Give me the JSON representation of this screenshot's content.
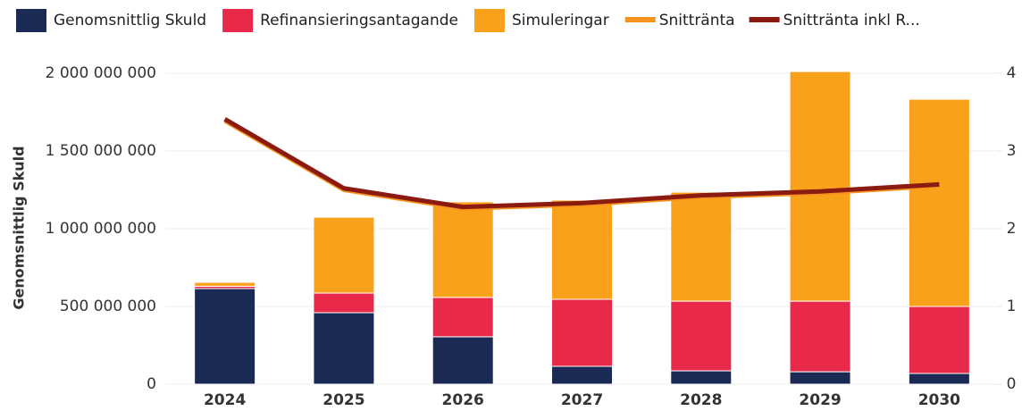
{
  "chart_data": {
    "type": "bar",
    "stacked": true,
    "y_label": "Genomsnittlig Skuld",
    "categories": [
      "2024",
      "2025",
      "2026",
      "2027",
      "2028",
      "2029",
      "2030"
    ],
    "series": [
      {
        "name": "Genomsnittlig Skuld",
        "color": "#1b2a55",
        "values": [
          615000000,
          460000000,
          305000000,
          115000000,
          86000000,
          80000000,
          69000000
        ]
      },
      {
        "name": "Refinansieringsantagande",
        "color": "#e8294a",
        "values": [
          15000000,
          126000000,
          253000000,
          431000000,
          448000000,
          454000000,
          431000000
        ]
      },
      {
        "name": "Simuleringar",
        "color": "#f9a11b",
        "values": [
          25000000,
          488000000,
          615000000,
          638000000,
          701000000,
          1477000000,
          1333000000
        ]
      },
      {
        "name": "Snittränta",
        "type": "line",
        "axis": "y2",
        "color": "#f7931e",
        "values": [
          3.39,
          2.5,
          2.26,
          2.31,
          2.41,
          2.46,
          2.55
        ]
      },
      {
        "name": "Snittränta inkl R...",
        "type": "line",
        "axis": "y2",
        "color": "#8b1a10",
        "values": [
          3.41,
          2.52,
          2.28,
          2.33,
          2.43,
          2.48,
          2.57
        ]
      }
    ],
    "ylim": [
      0,
      2000000000
    ],
    "yticks": [
      0,
      {
        "value": 500000000,
        "label": "500 000 000"
      },
      {
        "value": 1000000000,
        "label": "1 000 000 000"
      },
      {
        "value": 1500000000,
        "label": "1 500 000 000"
      },
      {
        "value": 2000000000,
        "label": "2 000 000 000"
      }
    ],
    "y2lim": [
      0,
      4
    ],
    "y2ticks": [
      0,
      1,
      2,
      3,
      4
    ],
    "grid": true
  }
}
